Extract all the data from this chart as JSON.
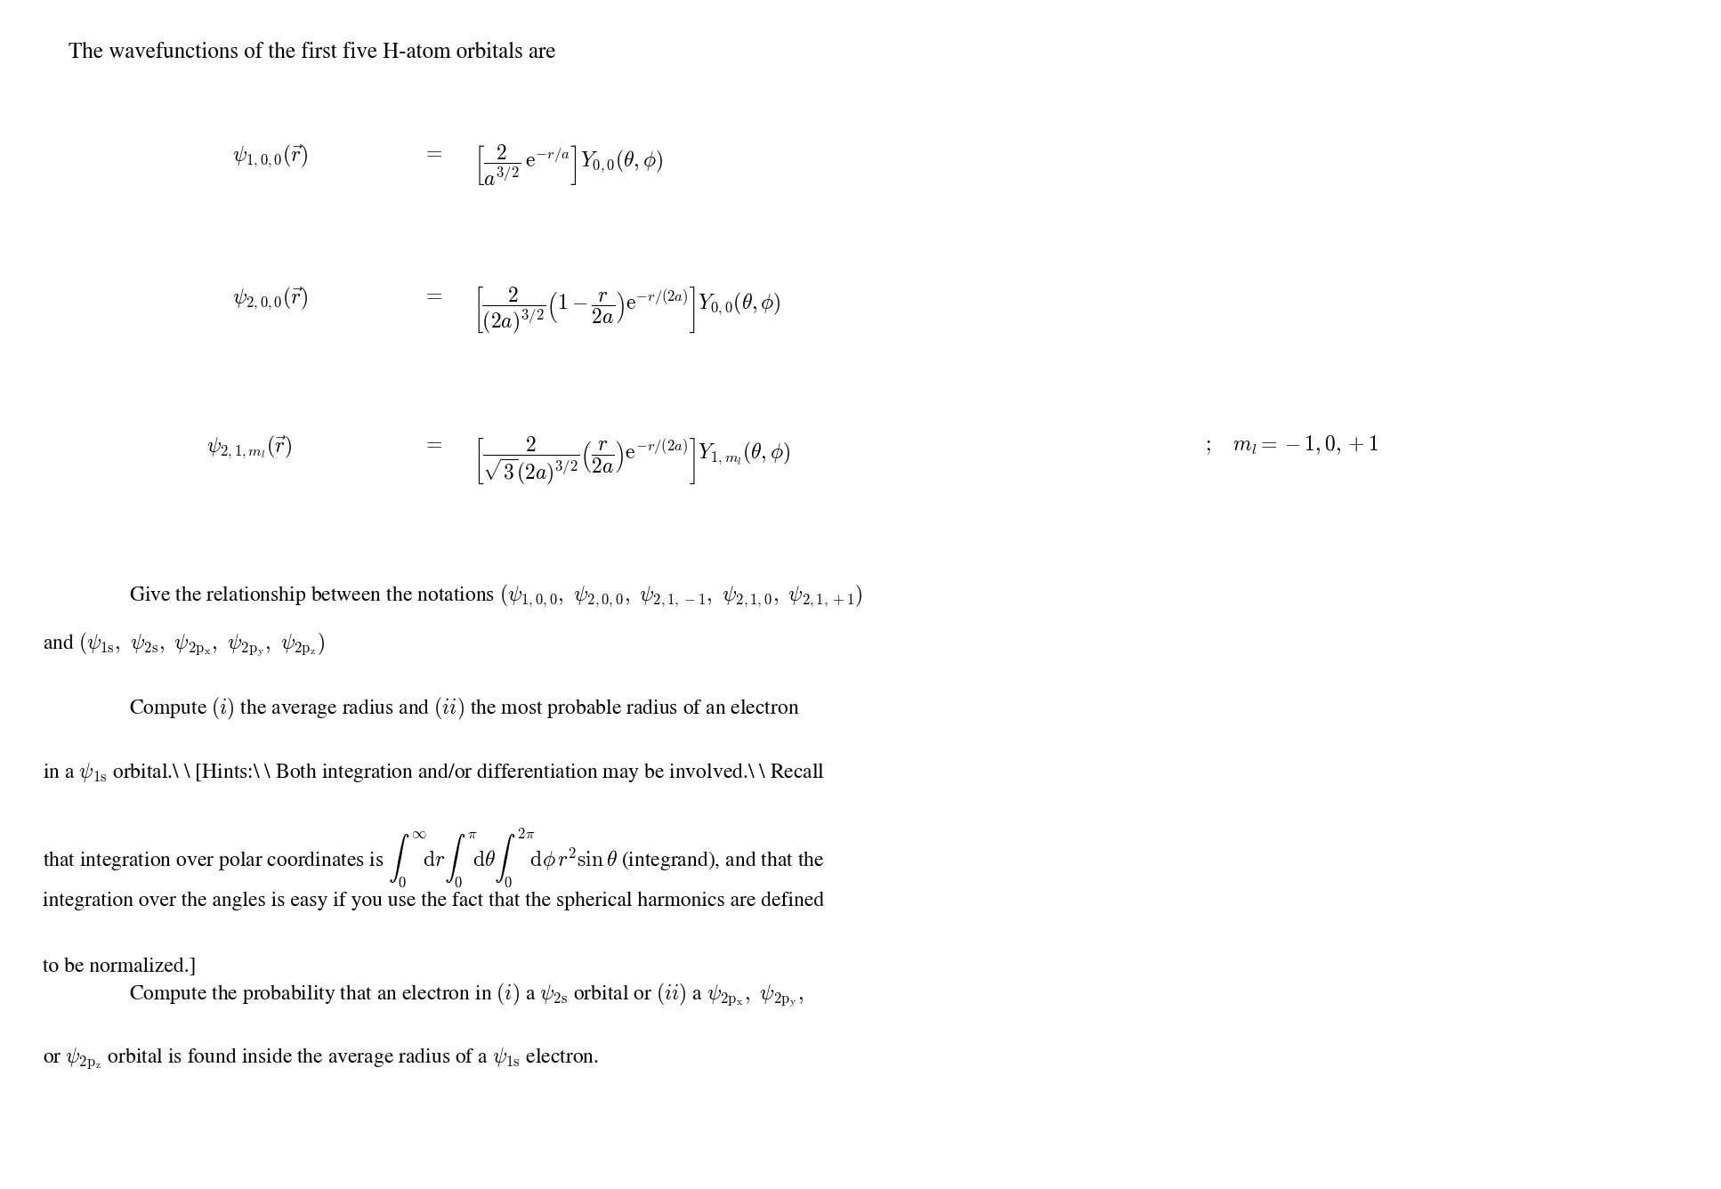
{
  "background_color": "#ffffff",
  "title_line": "The wavefunctions of the first five H-atom orbitals are",
  "eq1_lhs": "$\\psi_{1,0,0}(\\vec{r})$",
  "eq1_rhs": "$= \\left[\\dfrac{2}{a^{3/2}}\\, \\mathrm{e}^{-r/a}\\right] Y_{0,0}(\\theta, \\phi)$",
  "eq2_lhs": "$\\psi_{2,0,0}(\\vec{r})$",
  "eq2_rhs": "$= \\left[\\dfrac{2}{(2a)^{3/2}} \\left(1 - \\dfrac{r}{2a}\\right) \\mathrm{e}^{-r/(2a)}\\right] Y_{0,0}(\\theta, \\phi)$",
  "eq3_lhs": "$\\psi_{2,1,m_l}(\\vec{r})$",
  "eq3_rhs": "$= \\left[\\dfrac{2}{\\sqrt{3}(2a)^{3/2}} \\left(\\dfrac{r}{2a}\\right) \\mathrm{e}^{-r/(2a)}\\right] Y_{1,m_l}(\\theta, \\phi)$",
  "eq3_side": "$;\\quad m_l = -1, 0, +1$",
  "para1_line1": "Give the relationship between the notations $(\\psi_{1,0,0},\\; \\psi_{2,0,0},\\; \\psi_{2,1,-1},\\; \\psi_{2,1,0},\\; \\psi_{2,1,+1})$",
  "para1_line2": "and $(\\psi_{\\mathrm{1s}},\\; \\psi_{\\mathrm{2s}},\\; \\psi_{\\mathrm{2p_x}},\\; \\psi_{\\mathrm{2p_y}},\\; \\psi_{\\mathrm{2p_z}})$",
  "para2_line1": "Compute $(i)$ the average radius and $(ii)$ the most probable radius of an electron",
  "para2_line2": "in a $\\psi_{\\mathrm{1s}}$ orbital.\\quad [Hints:\\; Both integration and/or differentiation may be involved.\\quad Recall",
  "para2_line3": "that integration over polar coordinates is $\\int_0^{\\infty}\\mathrm{d}r\\int_0^{\\pi}\\mathrm{d}\\theta\\int_0^{2\\pi}\\mathrm{d}\\phi\\, r^2 \\sin\\theta$ (integrand), and that the",
  "para2_line4": "integration over the angles is easy if you use the fact that the spherical harmonics are defined",
  "para2_line5": "to be normalized.]",
  "para3_line1": "Compute the probability that an electron in $(i)$ a $\\psi_{\\mathrm{2s}}$ orbital or $(ii)$ a $\\psi_{\\mathrm{2p_x}},\\; \\psi_{\\mathrm{2p_y}},$",
  "para3_line2": "or $\\psi_{\\mathrm{2p_z}}$ orbital is found inside the average radius of a $\\psi_{\\mathrm{1s}}$ electron.",
  "text_color": "#000000",
  "font_size_title": 17,
  "font_size_eq": 17,
  "font_size_body": 17
}
